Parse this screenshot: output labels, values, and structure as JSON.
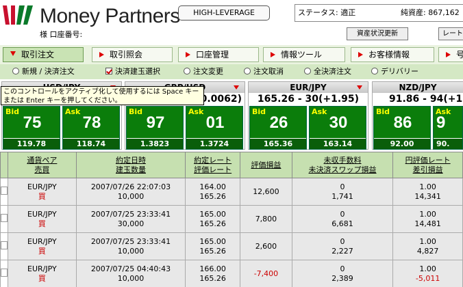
{
  "header": {
    "brand": "Money Partners",
    "account_label": "様 口座番号:",
    "high_leverage_button": "HIGH-LEVERAGE",
    "status_label": "ステータス: 適正",
    "asset_label": "純資産: 867,162",
    "refresh_button": "資産状況更新",
    "rate_button": "レート"
  },
  "menu": {
    "tabs": [
      {
        "label": "取引注文",
        "active": true
      },
      {
        "label": "取引照会",
        "active": false
      },
      {
        "label": "口座管理",
        "active": false
      },
      {
        "label": "情報ツール",
        "active": false
      },
      {
        "label": "お客様情報",
        "active": false
      },
      {
        "label": "号",
        "active": false
      }
    ]
  },
  "submenu": {
    "items": [
      {
        "label": "新規 / 決済注文",
        "type": "radio"
      },
      {
        "label": "決済建玉選択",
        "type": "checkbox"
      },
      {
        "label": "注文変更",
        "type": "radio"
      },
      {
        "label": "注文取消",
        "type": "radio"
      },
      {
        "label": "全決済注文",
        "type": "radio"
      },
      {
        "label": "デリバリー",
        "type": "radio"
      }
    ]
  },
  "tooltip": "このコントロールをアクティブ化して使用するには Space キーまたは Enter キーを押してください。",
  "panels": [
    {
      "pair": "USD/JPY",
      "rate": "",
      "bid_label": "Bid",
      "bid": "75",
      "bid_sub": "119.78",
      "ask_label": "Ask",
      "ask": "78",
      "ask_sub": "118.74"
    },
    {
      "pair": "GBP/USD",
      "rate": "+0.0062)",
      "bid_label": "Bid",
      "bid": "97",
      "bid_sub": "1.3823",
      "ask_label": "Ask",
      "ask": "01",
      "ask_sub": "1.3724"
    },
    {
      "pair": "EUR/JPY",
      "rate": "165.26 - 30(+1.95)",
      "bid_label": "Bid",
      "bid": "26",
      "bid_sub": "165.36",
      "ask_label": "Ask",
      "ask": "30",
      "ask_sub": "163.14"
    },
    {
      "pair": "NZD/JPY",
      "rate": "91.86 - 94(+1.",
      "bid_label": "Bid",
      "bid": "86",
      "bid_sub": "92.00",
      "ask_label": "Ask",
      "ask": "9",
      "ask_sub": "90."
    }
  ],
  "table": {
    "headers": [
      {
        "l1": "通貨ペア",
        "l2": "売買"
      },
      {
        "l1": "約定日時",
        "l2": "建玉数量"
      },
      {
        "l1": "約定レート",
        "l2": "評価レート"
      },
      {
        "l1": "評価損益",
        "l2": ""
      },
      {
        "l1": "未収手数料",
        "l2": "未決済スワップ損益"
      },
      {
        "l1": "円評価レート",
        "l2": "差引損益"
      }
    ],
    "rows": [
      {
        "pair": "EUR/JPY",
        "side": "買",
        "date": "2007/07/26 22:07:03",
        "qty": "10,000",
        "rate": "164.00",
        "eval": "165.26",
        "pl": "12,600",
        "pl_neg": false,
        "fee": "0",
        "swap": "1,741",
        "jpy_rate": "1.00",
        "net": "14,341",
        "net_neg": false
      },
      {
        "pair": "EUR/JPY",
        "side": "買",
        "date": "2007/07/25 23:33:41",
        "qty": "30,000",
        "rate": "165.00",
        "eval": "165.26",
        "pl": "7,800",
        "pl_neg": false,
        "fee": "0",
        "swap": "6,681",
        "jpy_rate": "1.00",
        "net": "14,481",
        "net_neg": false
      },
      {
        "pair": "EUR/JPY",
        "side": "買",
        "date": "2007/07/25 23:33:41",
        "qty": "10,000",
        "rate": "165.00",
        "eval": "165.26",
        "pl": "2,600",
        "pl_neg": false,
        "fee": "0",
        "swap": "2,227",
        "jpy_rate": "1.00",
        "net": "4,827",
        "net_neg": false
      },
      {
        "pair": "EUR/JPY",
        "side": "買",
        "date": "2007/07/25 04:40:43",
        "qty": "10,000",
        "rate": "166.00",
        "eval": "165.26",
        "pl": "-7,400",
        "pl_neg": true,
        "fee": "0",
        "swap": "2,389",
        "jpy_rate": "1.00",
        "net": "-5,011",
        "net_neg": true
      }
    ]
  }
}
